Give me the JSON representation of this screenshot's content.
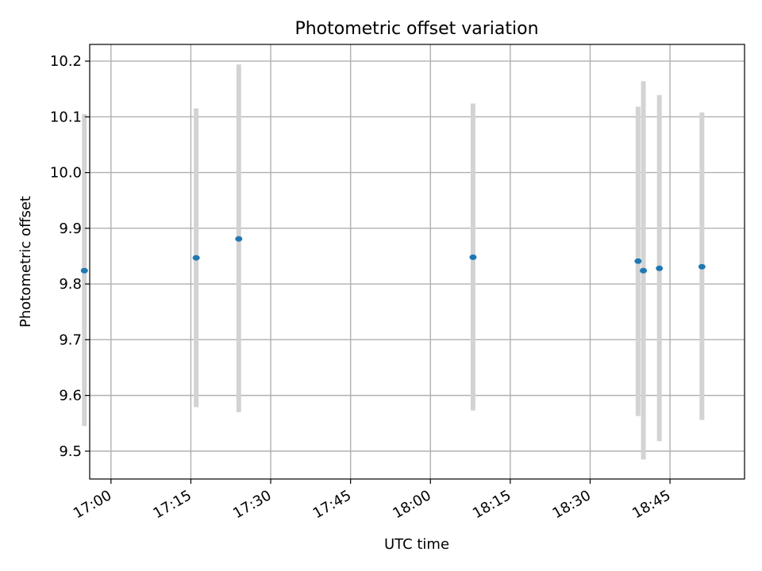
{
  "chart_data": {
    "type": "scatter",
    "title": "Photometric offset variation",
    "xlabel": "UTC time",
    "ylabel": "Photometric offset",
    "xlim": [
      "16:56",
      "18:59"
    ],
    "ylim": [
      9.45,
      10.23
    ],
    "x_ticks": [
      "17:00",
      "17:15",
      "17:30",
      "17:45",
      "18:00",
      "18:15",
      "18:30",
      "18:45"
    ],
    "y_ticks": [
      "9.5",
      "9.6",
      "9.7",
      "9.8",
      "9.9",
      "10.0",
      "10.1",
      "10.2"
    ],
    "grid": true,
    "point_color": "#1f77b4",
    "errorbar_color": "#d3d3d3",
    "series": [
      {
        "points": [
          {
            "x": "16:55",
            "y": 9.824,
            "ylow": 9.545,
            "yhigh": 10.105
          },
          {
            "x": "17:16",
            "y": 9.847,
            "ylow": 9.579,
            "yhigh": 10.115
          },
          {
            "x": "17:24",
            "y": 9.881,
            "ylow": 9.57,
            "yhigh": 10.194
          },
          {
            "x": "18:08",
            "y": 9.848,
            "ylow": 9.573,
            "yhigh": 10.124
          },
          {
            "x": "18:39",
            "y": 9.841,
            "ylow": 9.563,
            "yhigh": 10.118
          },
          {
            "x": "18:40",
            "y": 9.824,
            "ylow": 9.485,
            "yhigh": 10.164
          },
          {
            "x": "18:43",
            "y": 9.828,
            "ylow": 9.518,
            "yhigh": 10.139
          },
          {
            "x": "18:51",
            "y": 9.831,
            "ylow": 9.556,
            "yhigh": 10.108
          }
        ]
      }
    ]
  }
}
